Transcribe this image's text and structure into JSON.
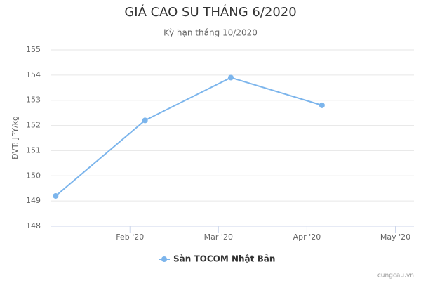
{
  "chart_data": {
    "type": "line",
    "title": "GIÁ CAO SU THÁNG 6/2020",
    "subtitle": "Kỳ hạn tháng 10/2020",
    "y_label": "ĐVT: JPY/kg",
    "x": [
      0.16,
      1.17,
      2.14,
      3.17
    ],
    "xlim": [
      0.11,
      4.21
    ],
    "xticks": [
      {
        "value": 1,
        "label": "Feb '20"
      },
      {
        "value": 2,
        "label": "Mar '20"
      },
      {
        "value": 3,
        "label": "Apr '20"
      },
      {
        "value": 4,
        "label": "May '20"
      }
    ],
    "ylim": [
      148,
      155
    ],
    "yticks": [
      148,
      149,
      150,
      151,
      152,
      153,
      154,
      155
    ],
    "grid": true,
    "legend": "bottom",
    "series": [
      {
        "name": "Sàn TOCOM Nhật Bản",
        "color": "#7cb5ec",
        "values": [
          149.2,
          152.2,
          153.9,
          152.8
        ]
      }
    ],
    "credits": "cungcau.vn"
  }
}
